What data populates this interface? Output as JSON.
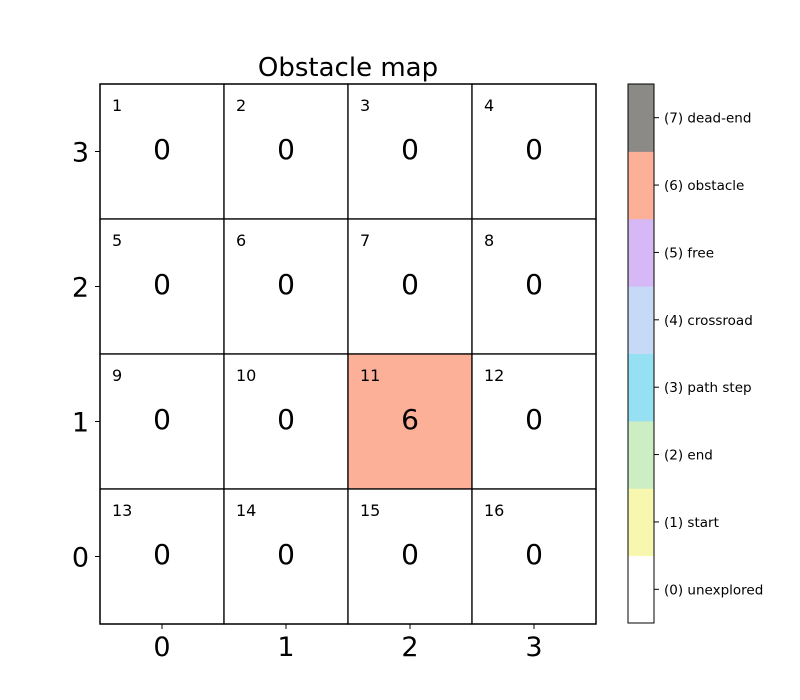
{
  "chart_data": {
    "type": "heatmap",
    "title": "Obstacle map",
    "xlabel": "",
    "ylabel": "",
    "x_ticks": [
      "0",
      "1",
      "2",
      "3"
    ],
    "y_ticks": [
      "3",
      "2",
      "1",
      "0"
    ],
    "grid": true,
    "legend": "colorbar-right",
    "cells": [
      {
        "row": 3,
        "col": 0,
        "id": "1",
        "value": 0
      },
      {
        "row": 3,
        "col": 1,
        "id": "2",
        "value": 0
      },
      {
        "row": 3,
        "col": 2,
        "id": "3",
        "value": 0
      },
      {
        "row": 3,
        "col": 3,
        "id": "4",
        "value": 0
      },
      {
        "row": 2,
        "col": 0,
        "id": "5",
        "value": 0
      },
      {
        "row": 2,
        "col": 1,
        "id": "6",
        "value": 0
      },
      {
        "row": 2,
        "col": 2,
        "id": "7",
        "value": 0
      },
      {
        "row": 2,
        "col": 3,
        "id": "8",
        "value": 0
      },
      {
        "row": 1,
        "col": 0,
        "id": "9",
        "value": 0
      },
      {
        "row": 1,
        "col": 1,
        "id": "10",
        "value": 0
      },
      {
        "row": 1,
        "col": 2,
        "id": "11",
        "value": 6
      },
      {
        "row": 1,
        "col": 3,
        "id": "12",
        "value": 0
      },
      {
        "row": 0,
        "col": 0,
        "id": "13",
        "value": 0
      },
      {
        "row": 0,
        "col": 1,
        "id": "14",
        "value": 0
      },
      {
        "row": 0,
        "col": 2,
        "id": "15",
        "value": 0
      },
      {
        "row": 0,
        "col": 3,
        "id": "16",
        "value": 0
      }
    ],
    "colorbar": [
      {
        "value": 0,
        "label": "(0) unexplored",
        "color": "#ffffff"
      },
      {
        "value": 1,
        "label": "(1) start",
        "color": "#f7f7b0"
      },
      {
        "value": 2,
        "label": "(2) end",
        "color": "#cdedc2"
      },
      {
        "value": 3,
        "label": "(3) path step",
        "color": "#95e0f2"
      },
      {
        "value": 4,
        "label": "(4) crossroad",
        "color": "#c6daf8"
      },
      {
        "value": 5,
        "label": "(5) free",
        "color": "#d5b8f5"
      },
      {
        "value": 6,
        "label": "(6) obstacle",
        "color": "#fdb098"
      },
      {
        "value": 7,
        "label": "(7) dead-end",
        "color": "#8c8a86"
      }
    ]
  }
}
